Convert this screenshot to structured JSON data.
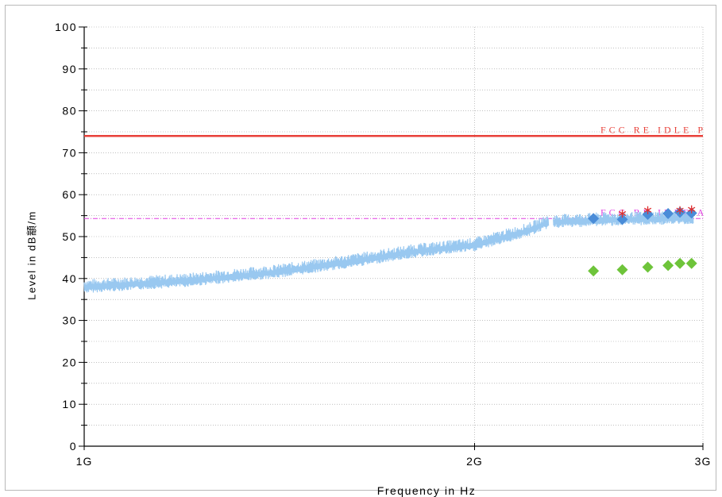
{
  "chart_data": {
    "type": "line",
    "xlabel": "Frequency in Hz",
    "ylabel": "Level in dB顓/m",
    "x_scale": "log",
    "x_ticks": [
      {
        "value": 1000000000,
        "label": "1G"
      },
      {
        "value": 2000000000,
        "label": "2G"
      },
      {
        "value": 3000000000,
        "label": "3G"
      }
    ],
    "xlim": [
      1000000000,
      3000000000
    ],
    "ylim": [
      0,
      100
    ],
    "y_ticks": [
      0,
      10,
      20,
      30,
      40,
      50,
      60,
      70,
      80,
      90,
      100
    ],
    "grid": true,
    "limit_lines": [
      {
        "name": "FCC RE IDLE P",
        "value": 74,
        "color": "#e8413a"
      },
      {
        "name": "FCC RE IDLE A",
        "value": 54.3,
        "color": "#e040e0"
      }
    ],
    "series": [
      {
        "color": "#99c8f0",
        "segments": [
          {
            "x": [
              1000000000,
              1200000000,
              1400000000,
              1600000000,
              1800000000,
              2000000000,
              2200000000,
              2280000000
            ],
            "y": [
              38,
              39.5,
              41.5,
              44,
              46.5,
              48,
              51.5,
              53.5
            ]
          },
          {
            "x": [
              2300000000,
              2500000000,
              2700000000,
              2950000000
            ],
            "y": [
              53.5,
              54,
              54.2,
              54.5
            ]
          }
        ]
      },
      {
        "color": "#4a8cd8",
        "marker": "diamond",
        "x": [
          2470000000,
          2600000000,
          2720000000,
          2820000000,
          2880000000,
          2940000000
        ],
        "y": [
          54.3,
          54.1,
          55.3,
          55.5,
          55.8,
          55.6
        ]
      },
      {
        "color": "#e03030",
        "marker": "asterisk",
        "x": [
          2600000000,
          2720000000,
          2880000000,
          2940000000
        ],
        "y": [
          55.5,
          56.3,
          56.3,
          56.5
        ]
      },
      {
        "color": "#6ec43a",
        "marker": "diamond",
        "x": [
          2470000000,
          2600000000,
          2720000000,
          2820000000,
          2880000000,
          2940000000
        ],
        "y": [
          41.8,
          42.1,
          42.7,
          43.1,
          43.6,
          43.6
        ]
      }
    ]
  }
}
